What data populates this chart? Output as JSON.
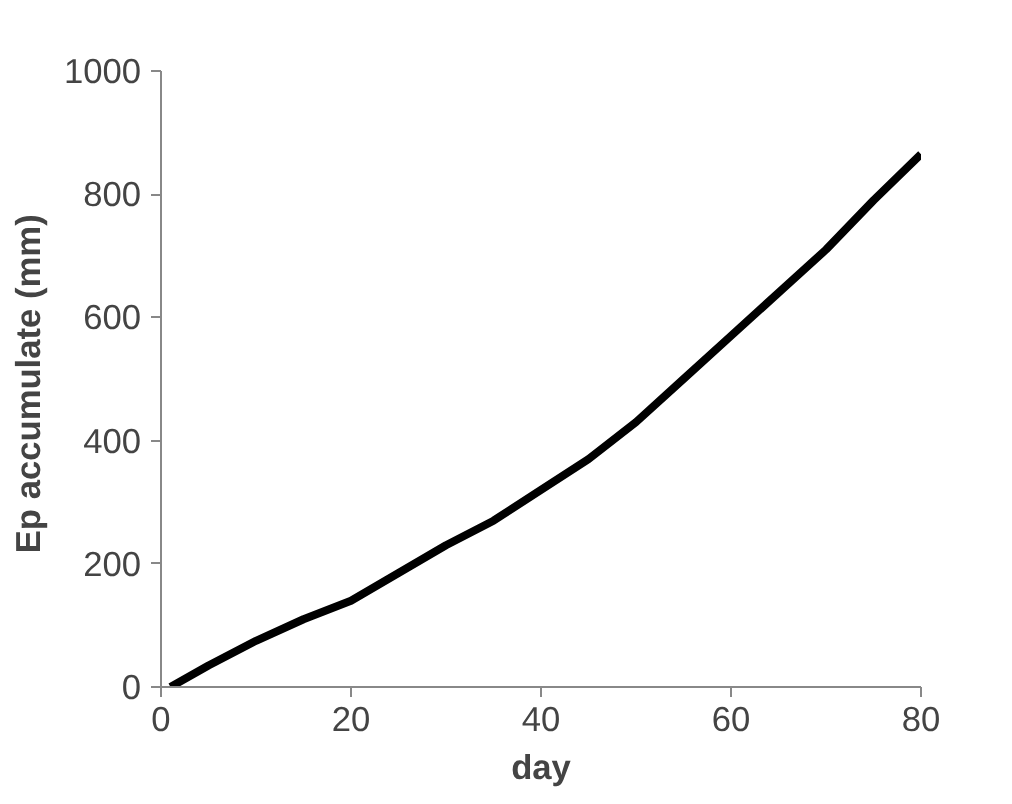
{
  "chart_data": {
    "type": "line",
    "xlabel": "day",
    "ylabel": "Ep accumulate  (mm)",
    "x": [
      1,
      5,
      10,
      15,
      20,
      25,
      30,
      35,
      40,
      45,
      50,
      55,
      60,
      65,
      70,
      75,
      80
    ],
    "series": [
      {
        "color": "#000000",
        "values": [
          0,
          35,
          75,
          110,
          140,
          185,
          230,
          270,
          320,
          370,
          430,
          500,
          570,
          640,
          710,
          790,
          865
        ]
      }
    ],
    "xlim": [
      0,
      80
    ],
    "xticks": [
      0,
      20,
      40,
      60,
      80
    ],
    "ylim": [
      0,
      1000
    ],
    "yticks": [
      0,
      200,
      400,
      600,
      800,
      1000
    ],
    "grid": false,
    "marker": "none",
    "line_style": "solid"
  }
}
